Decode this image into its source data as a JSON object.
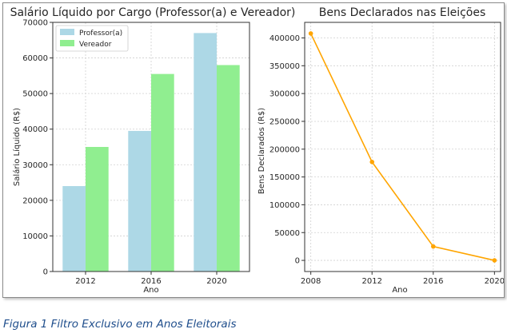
{
  "caption": "Figura 1 Filtro Exclusivo em Anos Eleitorais",
  "chart_data": [
    {
      "type": "bar",
      "title": "Salário Líquido por Cargo (Professor(a) e Vereador)",
      "xlabel": "Ano",
      "ylabel": "Salário Líquido (R$)",
      "categories": [
        "2012",
        "2016",
        "2020"
      ],
      "ylim": [
        0,
        70000
      ],
      "yticks": [
        0,
        10000,
        20000,
        30000,
        40000,
        50000,
        60000,
        70000
      ],
      "grid": true,
      "legend_position": "top-left",
      "series": [
        {
          "name": "Professor(a)",
          "values": [
            24000,
            39500,
            67000
          ],
          "color": "#add8e6"
        },
        {
          "name": "Vereador",
          "values": [
            35000,
            55500,
            58000
          ],
          "color": "#90ee90"
        }
      ]
    },
    {
      "type": "line",
      "title": "Bens Declarados nas Eleições",
      "xlabel": "Ano",
      "ylabel": "Bens Declarados (R$)",
      "x": [
        2008,
        2012,
        2016,
        2020
      ],
      "xticks": [
        "2008",
        "2012",
        "2016",
        "2020"
      ],
      "xlim": [
        2007.6,
        2020.4
      ],
      "ylim": [
        -20000,
        428000
      ],
      "yticks": [
        0,
        50000,
        100000,
        150000,
        200000,
        250000,
        300000,
        350000,
        400000
      ],
      "grid": true,
      "series": [
        {
          "values": [
            408000,
            177000,
            25000,
            0
          ],
          "color": "#ffa500"
        }
      ]
    }
  ]
}
